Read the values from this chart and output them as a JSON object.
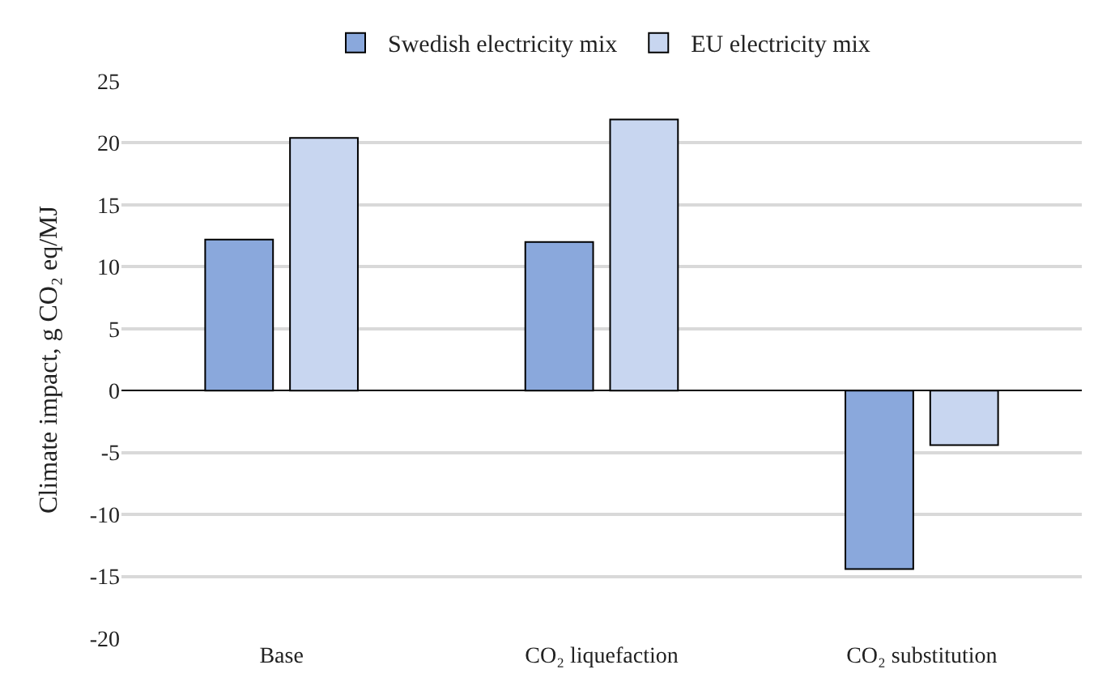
{
  "chart_data": {
    "type": "bar",
    "ylabel": "Climate impact, g CO₂ eq/MJ",
    "categories": [
      "Base",
      "CO₂ liquefaction",
      "CO₂ substitution"
    ],
    "series": [
      {
        "name": "Swedish electricity mix",
        "color": "#8aa8dc",
        "values": [
          12.2,
          12.0,
          -14.4
        ]
      },
      {
        "name": "EU electricity mix",
        "color": "#c8d6f0",
        "values": [
          20.4,
          21.9,
          -4.4
        ]
      }
    ],
    "ylim": [
      -20,
      25
    ],
    "yticks": [
      -20,
      -15,
      -10,
      -5,
      0,
      5,
      10,
      15,
      20,
      25
    ],
    "grid": "y",
    "legend": "top"
  }
}
